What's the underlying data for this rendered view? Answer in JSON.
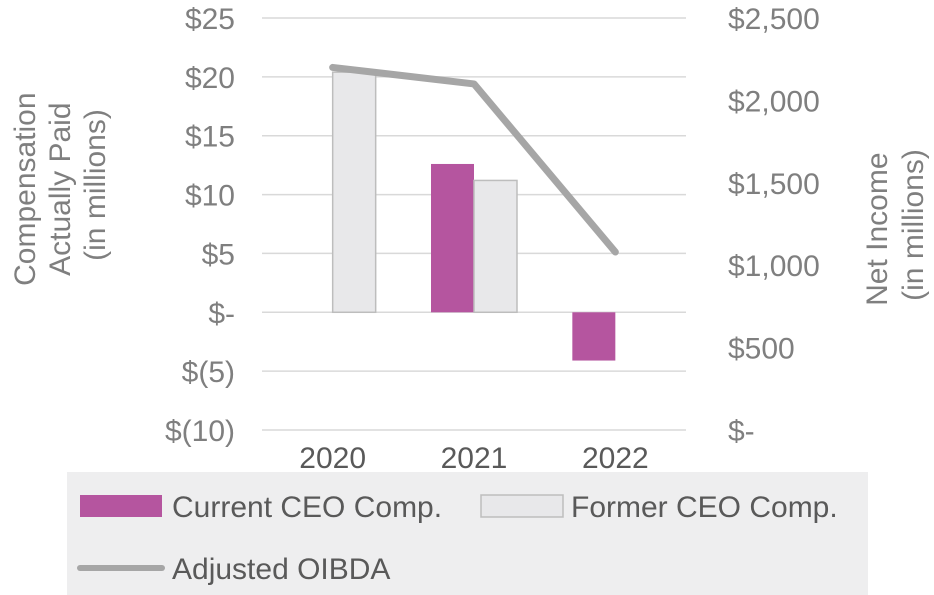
{
  "chart_data": {
    "type": "bar+line",
    "categories": [
      "2020",
      "2021",
      "2022"
    ],
    "series": [
      {
        "name": "Current CEO Comp.",
        "kind": "bar",
        "axis": "left",
        "color": "#b5559f",
        "values": [
          null,
          12.6,
          -4.1
        ]
      },
      {
        "name": "Former CEO Comp.",
        "kind": "bar",
        "axis": "left",
        "color": "#e8e8ea",
        "stroke": "#bdbdbd",
        "values": [
          20.4,
          11.2,
          null
        ]
      },
      {
        "name": "Adjusted OIBDA",
        "kind": "line",
        "axis": "right",
        "color": "#a6a6a6",
        "values": [
          2200,
          2100,
          1080
        ]
      }
    ],
    "left_axis": {
      "title_lines": [
        "Compensation",
        "Actually Paid",
        "(in millions)"
      ],
      "ylim": [
        -10,
        25
      ],
      "ticks": [
        25,
        20,
        15,
        10,
        5,
        0,
        -5,
        -10
      ],
      "tick_labels": [
        "$25",
        "$20",
        "$15",
        "$10",
        "$5",
        "$-",
        "$(5)",
        "$(10)"
      ]
    },
    "right_axis": {
      "title_lines": [
        "Net Income",
        "(in millions)"
      ],
      "ylim": [
        0,
        2500
      ],
      "ticks": [
        2500,
        2000,
        1500,
        1000,
        500,
        0
      ],
      "tick_labels": [
        "$2,500",
        "$2,000",
        "$1,500",
        "$1,000",
        "$500",
        "$-"
      ]
    },
    "grid": true,
    "legend_position": "bottom",
    "legend_background": "#eeeeef",
    "gridline_color": "#d9d9d9"
  }
}
